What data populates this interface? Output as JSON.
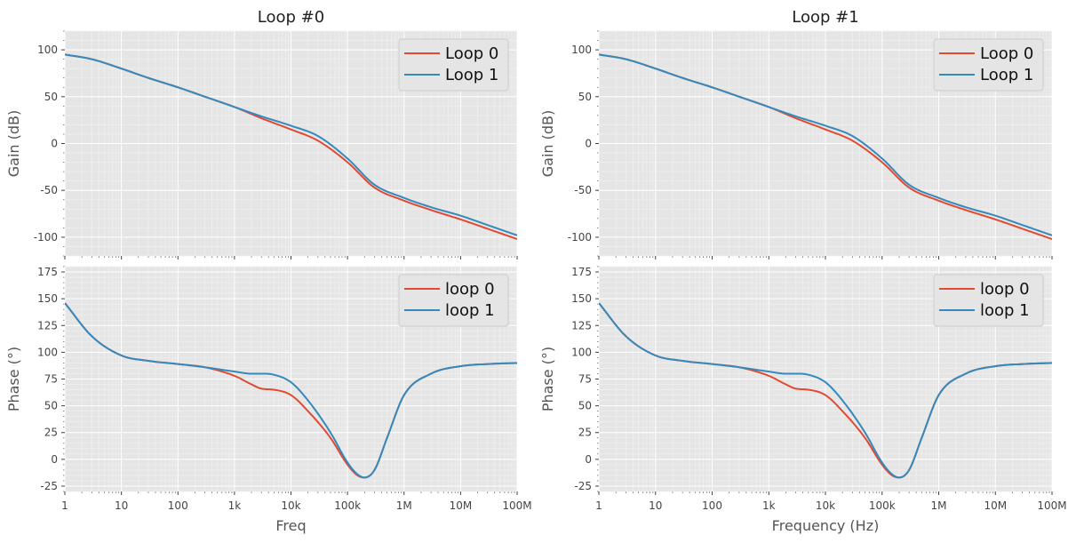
{
  "colors": {
    "background": "#e5e5e5",
    "grid_major": "#ffffff",
    "grid_minor": "#efefef",
    "series_0": "#e24a33",
    "series_1": "#348abd"
  },
  "chart_data": [
    {
      "type": "line",
      "title": "Loop #0",
      "xlabel": "",
      "ylabel": "Gain (dB)",
      "xscale": "log",
      "xlim": [
        1,
        100000000
      ],
      "ylim": [
        -120,
        120
      ],
      "yticks": [
        100,
        50,
        0,
        -50,
        -100
      ],
      "ytick_labels": [
        "100",
        "50",
        "0",
        "-50",
        "-100"
      ],
      "grid": true,
      "legend_position": "top-right",
      "x": [
        1,
        3,
        10,
        30,
        100,
        300,
        1000,
        3000,
        10000,
        30000,
        100000,
        300000,
        1000000,
        3000000,
        10000000,
        30000000,
        100000000
      ],
      "series": [
        {
          "name": "Loop 0",
          "values": [
            95,
            90,
            80,
            70,
            60,
            50,
            39,
            27,
            15,
            3,
            -20,
            -47,
            -61,
            -71,
            -81,
            -91,
            -102
          ]
        },
        {
          "name": "Loop 1",
          "values": [
            95,
            90,
            80,
            70,
            60,
            50,
            39,
            29,
            19,
            8,
            -16,
            -44,
            -58,
            -68,
            -77,
            -87,
            -98
          ]
        }
      ]
    },
    {
      "type": "line",
      "title": "Loop #1",
      "xlabel": "",
      "ylabel": "Gain (dB)",
      "xscale": "log",
      "xlim": [
        1,
        100000000
      ],
      "ylim": [
        -120,
        120
      ],
      "yticks": [
        100,
        50,
        0,
        -50,
        -100
      ],
      "ytick_labels": [
        "100",
        "50",
        "0",
        "-50",
        "-100"
      ],
      "grid": true,
      "legend_position": "top-right",
      "x": [
        1,
        3,
        10,
        30,
        100,
        300,
        1000,
        3000,
        10000,
        30000,
        100000,
        300000,
        1000000,
        3000000,
        10000000,
        30000000,
        100000000
      ],
      "series": [
        {
          "name": "Loop 0",
          "values": [
            95,
            90,
            80,
            70,
            60,
            50,
            39,
            27,
            15,
            3,
            -20,
            -47,
            -61,
            -71,
            -81,
            -91,
            -102
          ]
        },
        {
          "name": "Loop 1",
          "values": [
            95,
            90,
            80,
            70,
            60,
            50,
            39,
            29,
            19,
            8,
            -16,
            -44,
            -58,
            -68,
            -77,
            -87,
            -98
          ]
        }
      ]
    },
    {
      "type": "line",
      "title": "",
      "xlabel": "Freq",
      "ylabel": "Phase (°)",
      "xscale": "log",
      "xlim": [
        1,
        100000000
      ],
      "ylim": [
        -30,
        180
      ],
      "yticks": [
        175,
        150,
        125,
        100,
        75,
        50,
        25,
        0,
        -25
      ],
      "ytick_labels": [
        "175",
        "150",
        "125",
        "100",
        "75",
        "50",
        "25",
        "0",
        "-25"
      ],
      "xticks": [
        1,
        10,
        100,
        1000,
        10000,
        100000,
        1000000,
        10000000,
        100000000
      ],
      "xtick_labels": [
        "1",
        "10",
        "100",
        "1k",
        "10k",
        "100k",
        "1M",
        "10M",
        "100M"
      ],
      "grid": true,
      "legend_position": "top-right",
      "x": [
        1,
        3,
        10,
        30,
        100,
        300,
        1000,
        2000,
        3000,
        5000,
        10000,
        20000,
        50000,
        100000,
        150000,
        200000,
        300000,
        500000,
        1000000,
        3000000,
        10000000,
        30000000,
        100000000
      ],
      "series": [
        {
          "name": "loop 0",
          "values": [
            146,
            115,
            97,
            92,
            89,
            86,
            78,
            70,
            66,
            65,
            60,
            45,
            20,
            -5,
            -15,
            -17,
            -10,
            20,
            60,
            80,
            87,
            89,
            90
          ]
        },
        {
          "name": "loop 1",
          "values": [
            146,
            115,
            97,
            92,
            89,
            86,
            82,
            80,
            80,
            79,
            72,
            55,
            25,
            -3,
            -14,
            -17,
            -10,
            20,
            60,
            80,
            87,
            89,
            90
          ]
        }
      ]
    },
    {
      "type": "line",
      "title": "",
      "xlabel": "Frequency (Hz)",
      "ylabel": "Phase (°)",
      "xscale": "log",
      "xlim": [
        1,
        100000000
      ],
      "ylim": [
        -30,
        180
      ],
      "yticks": [
        175,
        150,
        125,
        100,
        75,
        50,
        25,
        0,
        -25
      ],
      "ytick_labels": [
        "175",
        "150",
        "125",
        "100",
        "75",
        "50",
        "25",
        "0",
        "-25"
      ],
      "xticks": [
        1,
        10,
        100,
        1000,
        10000,
        100000,
        1000000,
        10000000,
        100000000
      ],
      "xtick_labels": [
        "1",
        "10",
        "100",
        "1k",
        "10k",
        "100k",
        "1M",
        "10M",
        "100M"
      ],
      "grid": true,
      "legend_position": "top-right",
      "x": [
        1,
        3,
        10,
        30,
        100,
        300,
        1000,
        2000,
        3000,
        5000,
        10000,
        20000,
        50000,
        100000,
        150000,
        200000,
        300000,
        500000,
        1000000,
        3000000,
        10000000,
        30000000,
        100000000
      ],
      "series": [
        {
          "name": "loop 0",
          "values": [
            146,
            115,
            97,
            92,
            89,
            86,
            78,
            70,
            66,
            65,
            60,
            45,
            20,
            -5,
            -15,
            -17,
            -10,
            20,
            60,
            80,
            87,
            89,
            90
          ]
        },
        {
          "name": "loop 1",
          "values": [
            146,
            115,
            97,
            92,
            89,
            86,
            82,
            80,
            80,
            79,
            72,
            55,
            25,
            -3,
            -14,
            -17,
            -10,
            20,
            60,
            80,
            87,
            89,
            90
          ]
        }
      ]
    }
  ]
}
